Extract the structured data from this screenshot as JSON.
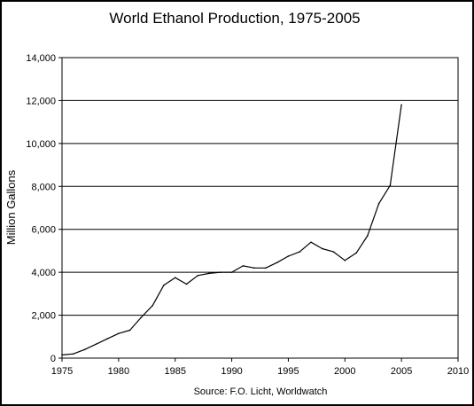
{
  "chart_data": {
    "type": "line",
    "title": "World Ethanol Production, 1975-2005",
    "xlabel": "",
    "ylabel": "Million Gallons",
    "source": "Source: F.O. Licht, Worldwatch",
    "xlim": [
      1975,
      2010
    ],
    "ylim": [
      0,
      14000
    ],
    "grid": "horizontal major gridlines",
    "legend": "none",
    "x_ticks": [
      {
        "value": 1975,
        "label": "1975"
      },
      {
        "value": 1980,
        "label": "1980"
      },
      {
        "value": 1985,
        "label": "1985"
      },
      {
        "value": 1990,
        "label": "1990"
      },
      {
        "value": 1995,
        "label": "1995"
      },
      {
        "value": 2000,
        "label": "2000"
      },
      {
        "value": 2005,
        "label": "2005"
      },
      {
        "value": 2010,
        "label": "2010"
      }
    ],
    "y_ticks": [
      {
        "value": 0,
        "label": "0"
      },
      {
        "value": 2000,
        "label": "2,000"
      },
      {
        "value": 4000,
        "label": "4,000"
      },
      {
        "value": 6000,
        "label": "6,000"
      },
      {
        "value": 8000,
        "label": "8,000"
      },
      {
        "value": 10000,
        "label": "10,000"
      },
      {
        "value": 12000,
        "label": "12,000"
      },
      {
        "value": 14000,
        "label": "14,000"
      }
    ],
    "series": [
      {
        "color": "#000000",
        "x": [
          1975,
          1976,
          1977,
          1978,
          1979,
          1980,
          1981,
          1982,
          1983,
          1984,
          1985,
          1986,
          1987,
          1988,
          1989,
          1990,
          1991,
          1992,
          1993,
          1994,
          1995,
          1996,
          1997,
          1998,
          1999,
          2000,
          2001,
          2002,
          2003,
          2004,
          2005
        ],
        "values": [
          150,
          200,
          400,
          650,
          900,
          1150,
          1300,
          1900,
          2450,
          3400,
          3750,
          3450,
          3850,
          3950,
          4000,
          4000,
          4300,
          4200,
          4200,
          4450,
          4750,
          4950,
          5400,
          5100,
          4950,
          4550,
          4900,
          5700,
          7200,
          8050,
          11800
        ]
      }
    ]
  }
}
